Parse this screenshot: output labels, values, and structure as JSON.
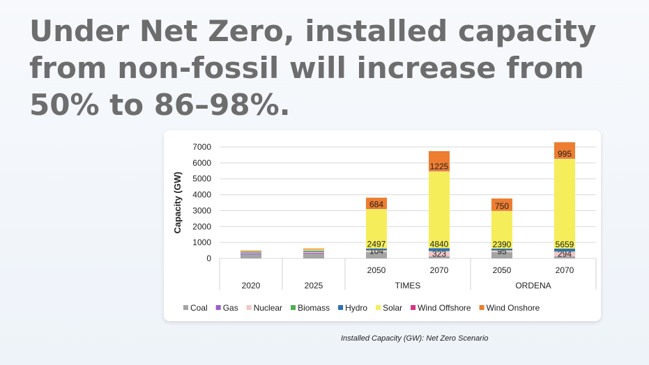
{
  "title": "Under Net Zero, installed capacity from non-fossil will increase from 50% to 86–98%.",
  "caption": "Installed Capacity (GW): Net Zero Scenario",
  "chart_data": {
    "type": "bar",
    "stacked": true,
    "ylabel": "Capacity (GW)",
    "ylim": [
      0,
      7000
    ],
    "yticks": [
      0,
      1000,
      2000,
      3000,
      4000,
      5000,
      6000,
      7000
    ],
    "grid": true,
    "legend_position": "bottom",
    "categories": [
      "2020",
      "2025",
      "2050",
      "2070",
      "2050",
      "2070"
    ],
    "groups": [
      {
        "label": "2020",
        "span": 1
      },
      {
        "label": "2025",
        "span": 1
      },
      {
        "label": "TIMES",
        "span": 2
      },
      {
        "label": "ORDENA",
        "span": 2
      }
    ],
    "series": [
      {
        "name": "Coal",
        "color": "#a5a5a5",
        "values": [
          250,
          300,
          400,
          130,
          400,
          130
        ]
      },
      {
        "name": "Gas",
        "color": "#9e5fc9",
        "values": [
          70,
          50,
          0,
          0,
          0,
          0
        ]
      },
      {
        "name": "Nuclear",
        "color": "#f2c6c8",
        "values": [
          40,
          60,
          104,
          323,
          95,
          294
        ],
        "labels": [
          null,
          null,
          "104",
          "323",
          "95",
          "294"
        ]
      },
      {
        "name": "Biomass",
        "color": "#4caf50",
        "values": [
          20,
          20,
          20,
          20,
          20,
          20
        ]
      },
      {
        "name": "Hydro",
        "color": "#2f6fb5",
        "values": [
          40,
          50,
          100,
          170,
          100,
          170
        ]
      },
      {
        "name": "Solar",
        "color": "#f5ee5a",
        "values": [
          40,
          80,
          2497,
          4840,
          2390,
          5659
        ],
        "labels": [
          null,
          null,
          "2497",
          "4840",
          "2390",
          "5659"
        ]
      },
      {
        "name": "Wind Offshore",
        "color": "#d63384",
        "values": [
          0,
          0,
          10,
          30,
          10,
          30
        ]
      },
      {
        "name": "Wind Onshore",
        "color": "#ed7d31",
        "values": [
          40,
          60,
          684,
          1225,
          750,
          995
        ],
        "labels": [
          null,
          null,
          "684",
          "1225",
          "750",
          "995"
        ]
      }
    ]
  }
}
